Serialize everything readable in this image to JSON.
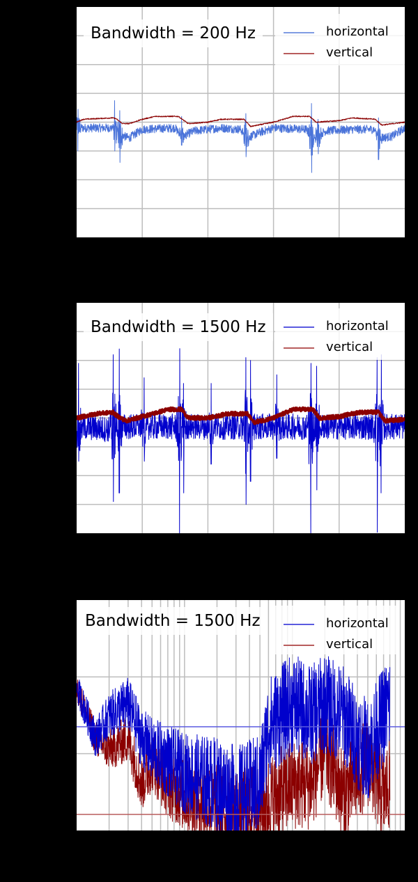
{
  "figure": {
    "background": "#000000",
    "axis_text_visible": false
  },
  "chart_data": [
    {
      "type": "line",
      "id": "time-200",
      "title": "Bandwidth = 200 Hz",
      "xlabel": "",
      "ylabel": "",
      "grid": true,
      "x_divisions": 5,
      "y_divisions": 8,
      "xlim": [
        0,
        5
      ],
      "ylim": [
        -4,
        4
      ],
      "legend_position": "upper right",
      "series": [
        {
          "name": "horizontal",
          "color": "#4a73d9",
          "legend_color": "#7f9be3",
          "baseline_points": [
            [
              0,
              -0.2
            ],
            [
              0.6,
              -0.2
            ],
            [
              0.6,
              -0.4
            ],
            [
              0.8,
              -0.55
            ],
            [
              1.0,
              -0.25
            ],
            [
              1.5,
              -0.2
            ],
            [
              1.6,
              -0.5
            ],
            [
              1.8,
              -0.3
            ],
            [
              2.2,
              -0.2
            ],
            [
              2.5,
              -0.25
            ],
            [
              2.6,
              -0.55
            ],
            [
              2.8,
              -0.35
            ],
            [
              3.0,
              -0.2
            ],
            [
              3.5,
              -0.25
            ],
            [
              3.6,
              -0.55
            ],
            [
              3.8,
              -0.3
            ],
            [
              4.2,
              -0.25
            ],
            [
              4.55,
              -0.25
            ],
            [
              4.6,
              -0.55
            ],
            [
              4.8,
              -0.5
            ],
            [
              5.0,
              -0.2
            ]
          ],
          "noise_amplitude": 0.15,
          "spikes": [
            {
              "x": 0.02,
              "up": 0.45,
              "down": -1.0
            },
            {
              "x": 0.58,
              "up": 0.75,
              "down": -1.0
            },
            {
              "x": 0.66,
              "up": 0.4,
              "down": -1.4
            },
            {
              "x": 1.6,
              "up": 0.2,
              "down": -0.8
            },
            {
              "x": 2.58,
              "up": 0.3,
              "down": -1.2
            },
            {
              "x": 3.58,
              "up": 0.65,
              "down": -1.75
            },
            {
              "x": 3.68,
              "up": 0.1,
              "down": -1.1
            },
            {
              "x": 4.6,
              "up": 0.15,
              "down": -1.3
            }
          ]
        },
        {
          "name": "vertical",
          "color": "#8b0000",
          "legend_color": "#b85c5c",
          "baseline_points": [
            [
              0,
              0.0
            ],
            [
              0.1,
              0.1
            ],
            [
              0.55,
              0.15
            ],
            [
              0.6,
              0.12
            ],
            [
              0.7,
              -0.05
            ],
            [
              0.8,
              -0.05
            ],
            [
              1.0,
              0.1
            ],
            [
              1.2,
              0.2
            ],
            [
              1.55,
              0.2
            ],
            [
              1.7,
              -0.05
            ],
            [
              2.0,
              0.0
            ],
            [
              2.2,
              0.1
            ],
            [
              2.55,
              0.1
            ],
            [
              2.65,
              -0.15
            ],
            [
              3.0,
              0.0
            ],
            [
              3.3,
              0.2
            ],
            [
              3.55,
              0.2
            ],
            [
              3.65,
              0.0
            ],
            [
              4.0,
              0.05
            ],
            [
              4.2,
              0.15
            ],
            [
              4.55,
              0.1
            ],
            [
              4.65,
              -0.1
            ],
            [
              5.0,
              0.0
            ]
          ],
          "noise_amplitude": 0.02,
          "spikes": []
        }
      ]
    },
    {
      "type": "line",
      "id": "time-1500",
      "title": "Bandwidth = 1500 Hz",
      "xlabel": "",
      "ylabel": "",
      "grid": true,
      "x_divisions": 5,
      "y_divisions": 8,
      "xlim": [
        0,
        5
      ],
      "ylim": [
        -4,
        4
      ],
      "legend_position": "upper right",
      "series": [
        {
          "name": "horizontal",
          "color": "#0000cc",
          "legend_color": "#5a5ae0",
          "baseline_points": [
            [
              0,
              -0.3
            ],
            [
              0.55,
              -0.4
            ],
            [
              0.6,
              -0.3
            ],
            [
              1.5,
              -0.3
            ],
            [
              2.5,
              -0.3
            ],
            [
              3.5,
              -0.3
            ],
            [
              4.5,
              -0.3
            ],
            [
              5.0,
              -0.3
            ]
          ],
          "noise_amplitude": 0.45,
          "spikes": [
            {
              "x": 0.03,
              "up": 1.9,
              "down": -1.5
            },
            {
              "x": 0.56,
              "up": 2.2,
              "down": -2.9
            },
            {
              "x": 0.65,
              "up": 2.4,
              "down": -2.6
            },
            {
              "x": 1.03,
              "up": 1.4,
              "down": -1.5
            },
            {
              "x": 1.57,
              "up": 2.4,
              "down": -4.0
            },
            {
              "x": 1.63,
              "up": 1.2,
              "down": -2.6
            },
            {
              "x": 2.05,
              "up": 1.2,
              "down": -1.6
            },
            {
              "x": 2.58,
              "up": 2.1,
              "down": -3.0
            },
            {
              "x": 2.65,
              "up": 2.0,
              "down": -2.2
            },
            {
              "x": 3.05,
              "up": 1.5,
              "down": -1.4
            },
            {
              "x": 3.57,
              "up": 1.9,
              "down": -4.0
            },
            {
              "x": 3.66,
              "up": 1.8,
              "down": -2.5
            },
            {
              "x": 4.58,
              "up": 2.1,
              "down": -4.0
            },
            {
              "x": 4.64,
              "up": 2.2,
              "down": -2.6
            }
          ]
        },
        {
          "name": "vertical",
          "color": "#8b0000",
          "legend_color": "#b85c5c",
          "baseline_points": [
            [
              0,
              0.0
            ],
            [
              0.3,
              0.15
            ],
            [
              0.55,
              0.2
            ],
            [
              0.6,
              0.1
            ],
            [
              0.75,
              -0.1
            ],
            [
              1.0,
              0.05
            ],
            [
              1.4,
              0.3
            ],
            [
              1.6,
              0.3
            ],
            [
              1.7,
              0.0
            ],
            [
              2.0,
              0.0
            ],
            [
              2.3,
              0.15
            ],
            [
              2.6,
              0.15
            ],
            [
              2.7,
              -0.15
            ],
            [
              3.0,
              0.0
            ],
            [
              3.3,
              0.3
            ],
            [
              3.6,
              0.3
            ],
            [
              3.7,
              0.0
            ],
            [
              4.0,
              0.05
            ],
            [
              4.3,
              0.2
            ],
            [
              4.6,
              0.2
            ],
            [
              4.7,
              -0.1
            ],
            [
              5.0,
              -0.05
            ]
          ],
          "noise_amplitude": 0.07,
          "line_width": 3,
          "spikes": []
        }
      ]
    },
    {
      "type": "line",
      "id": "spectrum-1500",
      "title": "Bandwidth = 1500 Hz",
      "xlabel": "",
      "ylabel": "",
      "grid": true,
      "xscale": "log",
      "yscale": "log",
      "xlim": [
        1,
        1100
      ],
      "ylim_decades": 3,
      "legend_position": "upper right",
      "series": [
        {
          "name": "horizontal",
          "color": "#0000cc",
          "legend_color": "#5a5ae0",
          "envelope_points": [
            [
              1,
              0.62
            ],
            [
              1.5,
              0.4
            ],
            [
              2,
              0.5
            ],
            [
              3,
              0.55
            ],
            [
              4,
              0.4
            ],
            [
              5,
              0.35
            ],
            [
              7,
              0.3
            ],
            [
              10,
              0.25
            ],
            [
              20,
              0.2
            ],
            [
              30,
              0.15
            ],
            [
              50,
              0.2
            ],
            [
              60,
              0.45
            ],
            [
              100,
              0.55
            ],
            [
              150,
              0.5
            ],
            [
              200,
              0.55
            ],
            [
              300,
              0.5
            ],
            [
              400,
              0.4
            ],
            [
              500,
              0.35
            ],
            [
              700,
              0.5
            ],
            [
              800,
              0.55
            ]
          ],
          "noise_amplitude": 0.22,
          "reference_level": 0.45
        },
        {
          "name": "vertical",
          "color": "#8b0000",
          "legend_color": "#b85c5c",
          "envelope_points": [
            [
              1,
              0.62
            ],
            [
              1.5,
              0.4
            ],
            [
              2,
              0.35
            ],
            [
              3,
              0.4
            ],
            [
              4,
              0.2
            ],
            [
              5,
              0.3
            ],
            [
              7,
              0.2
            ],
            [
              10,
              0.15
            ],
            [
              20,
              0.1
            ],
            [
              30,
              0.08
            ],
            [
              50,
              0.1
            ],
            [
              100,
              0.2
            ],
            [
              150,
              0.2
            ],
            [
              200,
              0.35
            ],
            [
              300,
              0.15
            ],
            [
              500,
              0.3
            ],
            [
              700,
              0.15
            ],
            [
              800,
              0.2
            ]
          ],
          "noise_amplitude": 0.2,
          "reference_level": 0.07
        }
      ]
    }
  ],
  "panels": [
    {
      "title": "Bandwidth = 200 Hz",
      "legend": [
        {
          "label": "horizontal",
          "color": "#7f9be3"
        },
        {
          "label": "vertical",
          "color": "#b85c5c"
        }
      ]
    },
    {
      "title": "Bandwidth = 1500 Hz",
      "legend": [
        {
          "label": "horizontal",
          "color": "#5a5ae0"
        },
        {
          "label": "vertical",
          "color": "#b85c5c"
        }
      ]
    },
    {
      "title": "Bandwidth = 1500 Hz",
      "legend": [
        {
          "label": "horizontal",
          "color": "#5a5ae0"
        },
        {
          "label": "vertical",
          "color": "#b85c5c"
        }
      ]
    }
  ]
}
